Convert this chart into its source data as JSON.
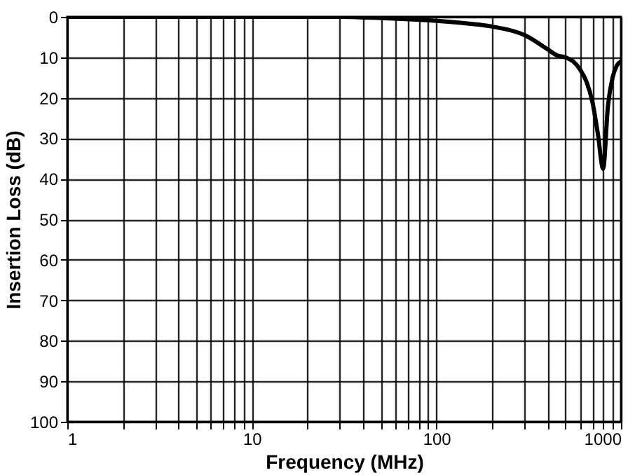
{
  "chart_data": {
    "type": "line",
    "xlabel": "Frequency (MHz)",
    "ylabel": "Insertion Loss (dB)",
    "log": "x",
    "grid": true,
    "line_style": "solid",
    "marker": "none",
    "xlim": [
      1,
      1000
    ],
    "ylim": [
      100,
      0
    ],
    "xticks": [
      1,
      {
        "value": 2,
        "label": null
      },
      {
        "value": 3,
        "label": null
      },
      {
        "value": 4,
        "label": null
      },
      {
        "value": 5,
        "label": null
      },
      {
        "value": 6,
        "label": null
      },
      {
        "value": 7,
        "label": null
      },
      {
        "value": 8,
        "label": null
      },
      {
        "value": 9,
        "label": null
      },
      10,
      {
        "value": 20,
        "label": null
      },
      {
        "value": 30,
        "label": null
      },
      {
        "value": 40,
        "label": null
      },
      {
        "value": 50,
        "label": null
      },
      {
        "value": 60,
        "label": null
      },
      {
        "value": 70,
        "label": null
      },
      {
        "value": 80,
        "label": null
      },
      {
        "value": 90,
        "label": null
      },
      100,
      {
        "value": 200,
        "label": null
      },
      {
        "value": 300,
        "label": null
      },
      {
        "value": 400,
        "label": null
      },
      {
        "value": 500,
        "label": null
      },
      {
        "value": 600,
        "label": null
      },
      {
        "value": 700,
        "label": null
      },
      {
        "value": 800,
        "label": null
      },
      {
        "value": 900,
        "label": null
      },
      1000
    ],
    "yticks": [
      0,
      10,
      20,
      30,
      40,
      50,
      60,
      70,
      80,
      90,
      100
    ],
    "series": [
      {
        "color": "#000000",
        "x": [
          1,
          10,
          30,
          50,
          100,
          150,
          200,
          300,
          400,
          450,
          500,
          550,
          600,
          650,
          700,
          750,
          800,
          850,
          900,
          950,
          1000
        ],
        "values": [
          0,
          0,
          0,
          0.3,
          1,
          1.7,
          2.4,
          4.5,
          8,
          9.5,
          10,
          11,
          13,
          16,
          21,
          29,
          37.5,
          22,
          15,
          12,
          11
        ]
      }
    ]
  }
}
